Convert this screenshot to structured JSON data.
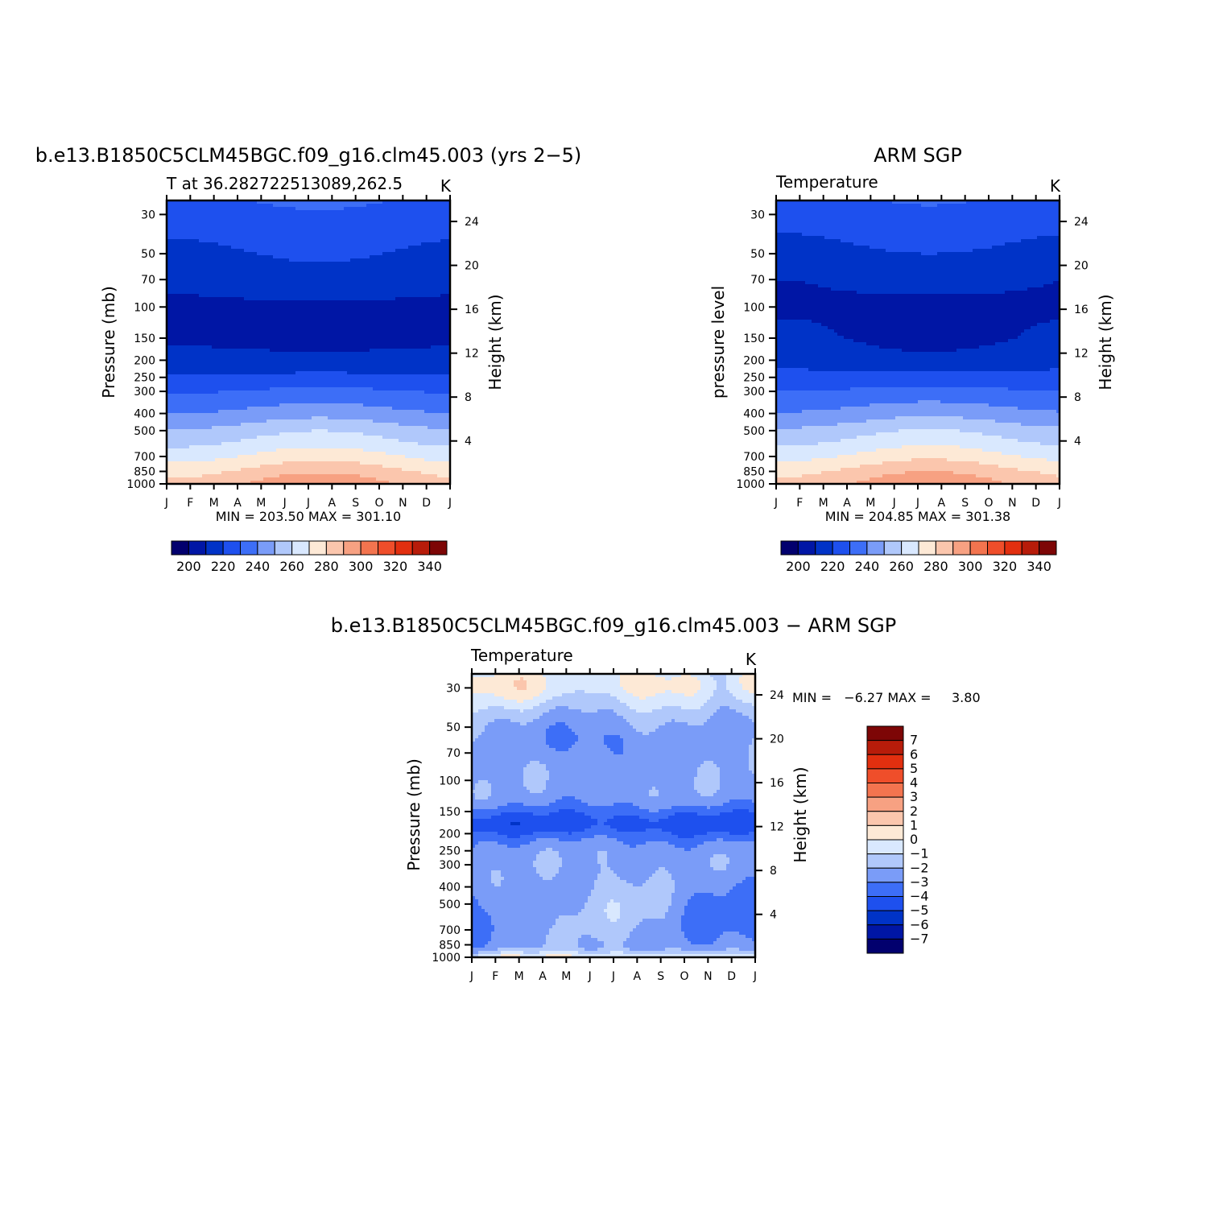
{
  "colors": {
    "temp_scale": [
      "#02006e",
      "#0016a5",
      "#0033c7",
      "#1e50ee",
      "#3d6ef7",
      "#7a9cf8",
      "#b0c8fb",
      "#d9e8fe",
      "#fde9d6",
      "#fbc6ad",
      "#f7a182",
      "#f3744f",
      "#ef4e2a",
      "#e22f0f",
      "#b71c0a",
      "#7d0606"
    ],
    "diff_scale": [
      "#02006e",
      "#0016a5",
      "#0033c7",
      "#1e50ee",
      "#3d6ef7",
      "#7a9cf8",
      "#b0c8fb",
      "#d9e8fe",
      "#fde9d6",
      "#fbc6ad",
      "#f7a182",
      "#f3744f",
      "#ef4e2a",
      "#e22f0f",
      "#b71c0a",
      "#7d0606"
    ]
  },
  "chart_data": [
    {
      "type": "heatmap",
      "title": "b.e13.B1850C5CLM45BGC.f09_g16.clm45.003 (yrs 2−5)",
      "subtitle": "T at 36.282722513089,262.5",
      "units": "K",
      "ylabel": "Pressure (mb)",
      "y2label": "Height (km)",
      "minmax_text": "MIN = 203.50 MAX = 301.10",
      "x_ticks": [
        "J",
        "F",
        "M",
        "A",
        "M",
        "J",
        "J",
        "A",
        "S",
        "O",
        "N",
        "D",
        "J"
      ],
      "y_ticks": [
        "30",
        "50",
        "70",
        "100",
        "150",
        "200",
        "250",
        "300",
        "400",
        "500",
        "700",
        "850",
        "1000"
      ],
      "y2_ticks": [
        "24",
        "20",
        "16",
        "12",
        "8",
        "4"
      ],
      "legend_labels": [
        "200",
        "220",
        "240",
        "260",
        "280",
        "300",
        "320",
        "340"
      ],
      "levels": [
        200,
        210,
        220,
        230,
        240,
        250,
        260,
        270,
        280,
        290,
        300,
        310,
        320,
        330,
        340
      ],
      "ylim_mb": [
        25,
        1000
      ],
      "months": [
        0,
        1,
        2,
        3,
        4,
        5,
        6,
        7,
        8,
        9,
        10,
        11,
        12
      ],
      "profiles": {
        "p": [
          25,
          30,
          50,
          70,
          100,
          150,
          200,
          250,
          300,
          400,
          500,
          700,
          850,
          1000
        ],
        "jan": [
          228,
          224,
          217,
          211,
          209,
          208,
          214,
          221,
          229,
          240,
          251,
          266,
          277,
          283
        ],
        "jul": [
          232,
          229,
          222,
          215,
          208,
          206,
          213,
          223,
          233,
          247,
          260,
          277,
          289,
          299
        ]
      },
      "min": 203.5,
      "max": 301.1
    },
    {
      "type": "heatmap",
      "title": "ARM SGP",
      "subtitle": "Temperature",
      "units": "K",
      "ylabel": "pressure level",
      "y2label": "Height (km)",
      "minmax_text": "MIN = 204.85 MAX = 301.38",
      "x_ticks": [
        "J",
        "F",
        "M",
        "A",
        "M",
        "J",
        "J",
        "A",
        "S",
        "O",
        "N",
        "D",
        "J"
      ],
      "y_ticks": [
        "30",
        "50",
        "70",
        "100",
        "150",
        "200",
        "250",
        "300",
        "400",
        "500",
        "700",
        "850",
        "1000"
      ],
      "y2_ticks": [
        "24",
        "20",
        "16",
        "12",
        "8",
        "4"
      ],
      "legend_labels": [
        "200",
        "220",
        "240",
        "260",
        "280",
        "300",
        "320",
        "340"
      ],
      "levels": [
        200,
        210,
        220,
        230,
        240,
        250,
        260,
        270,
        280,
        290,
        300,
        310,
        320,
        330,
        340
      ],
      "ylim_mb": [
        25,
        1000
      ],
      "months": [
        0,
        1,
        2,
        3,
        4,
        5,
        6,
        7,
        8,
        9,
        10,
        11,
        12
      ],
      "profiles": {
        "p": [
          25,
          30,
          50,
          70,
          100,
          150,
          200,
          250,
          300,
          400,
          500,
          700,
          850,
          1000
        ],
        "jan": [
          227,
          223,
          216,
          210,
          209,
          212,
          217,
          223,
          230,
          241,
          252,
          267,
          278,
          283
        ],
        "jul": [
          231,
          228,
          220,
          213,
          207,
          206,
          213,
          223,
          234,
          248,
          261,
          278,
          290,
          300
        ]
      },
      "min": 204.85,
      "max": 301.38
    },
    {
      "type": "heatmap",
      "title": "b.e13.B1850C5CLM45BGC.f09_g16.clm45.003 − ARM SGP",
      "subtitle": "Temperature",
      "units": "K",
      "ylabel": "Pressure (mb)",
      "y2label": "Height (km)",
      "minmax_text": "MIN =   −6.27 MAX =     3.80",
      "x_ticks": [
        "J",
        "F",
        "M",
        "A",
        "M",
        "J",
        "J",
        "A",
        "S",
        "O",
        "N",
        "D",
        "J"
      ],
      "y_ticks": [
        "30",
        "50",
        "70",
        "100",
        "150",
        "200",
        "250",
        "300",
        "400",
        "500",
        "700",
        "850",
        "1000"
      ],
      "y2_ticks": [
        "24",
        "20",
        "16",
        "12",
        "8",
        "4"
      ],
      "legend_labels": [
        "7",
        "6",
        "5",
        "4",
        "3",
        "2",
        "1",
        "0",
        "−1",
        "−2",
        "−3",
        "−4",
        "−5",
        "−6",
        "−7"
      ],
      "levels": [
        -7,
        -6,
        -5,
        -4,
        -3,
        -2,
        -1,
        0,
        1,
        2,
        3,
        4,
        5,
        6,
        7
      ],
      "ylim_mb": [
        25,
        1000
      ],
      "min": -6.27,
      "max": 3.8
    }
  ]
}
